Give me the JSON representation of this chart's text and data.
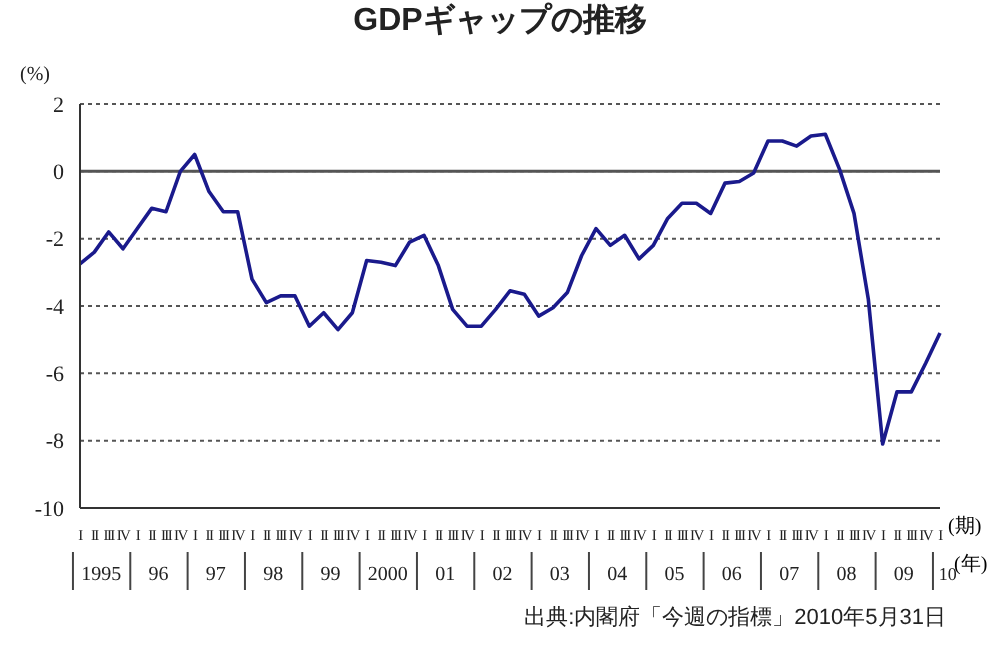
{
  "chart_data": {
    "type": "line",
    "title": "GDPギャップの推移",
    "ylabel": "(%)",
    "categories": [
      "I",
      "II",
      "III",
      "IV",
      "I",
      "II",
      "III",
      "IV",
      "I",
      "II",
      "III",
      "IV",
      "I",
      "II",
      "III",
      "IV",
      "I",
      "II",
      "III",
      "IV",
      "I",
      "II",
      "III",
      "IV",
      "I",
      "II",
      "III",
      "IV",
      "I",
      "II",
      "III",
      "IV",
      "I",
      "II",
      "III",
      "IV",
      "I",
      "II",
      "III",
      "IV",
      "I",
      "II",
      "III",
      "IV",
      "I",
      "II",
      "III",
      "IV",
      "I",
      "II",
      "III",
      "IV",
      "I",
      "II",
      "III",
      "IV",
      "I",
      "II",
      "III",
      "IV",
      "I"
    ],
    "series": [
      {
        "color": "#1a1a8c",
        "values": [
          -2.75,
          -2.4,
          -1.8,
          -2.3,
          -1.7,
          -1.1,
          -1.2,
          0.0,
          0.5,
          -0.6,
          -1.2,
          -1.2,
          -3.2,
          -3.9,
          -3.7,
          -3.7,
          -4.6,
          -4.2,
          -4.7,
          -4.2,
          -2.65,
          -2.7,
          -2.8,
          -2.1,
          -1.9,
          -2.8,
          -4.1,
          -4.6,
          -4.6,
          -4.1,
          -3.55,
          -3.65,
          -4.3,
          -4.05,
          -3.6,
          -2.5,
          -1.7,
          -2.2,
          -1.9,
          -2.6,
          -2.2,
          -1.4,
          -0.95,
          -0.95,
          -1.25,
          -0.35,
          -0.3,
          -0.05,
          0.9,
          0.9,
          0.75,
          1.05,
          1.1,
          0.05,
          -1.25,
          -3.8,
          -8.1,
          -6.55,
          -6.55,
          -5.7,
          -4.8
        ]
      }
    ],
    "ylim": [
      -10,
      2
    ],
    "yticks": [
      2,
      0,
      -2,
      -4,
      -6,
      -8,
      -10
    ],
    "grid": "y",
    "marker": "none",
    "line_style": "solid",
    "ref_lines": [
      {
        "axis": "y",
        "value": 0,
        "color": "#555555",
        "line_style": "solid"
      }
    ],
    "annotations": [
      "1995",
      "96",
      "97",
      "98",
      "99",
      "2000",
      "01",
      "02",
      "03",
      "04",
      "05",
      "06",
      "07",
      "08",
      "09",
      "10",
      "(期)",
      "(年)",
      "出典:内閣府「今週の指標」2010年5月31日"
    ]
  }
}
